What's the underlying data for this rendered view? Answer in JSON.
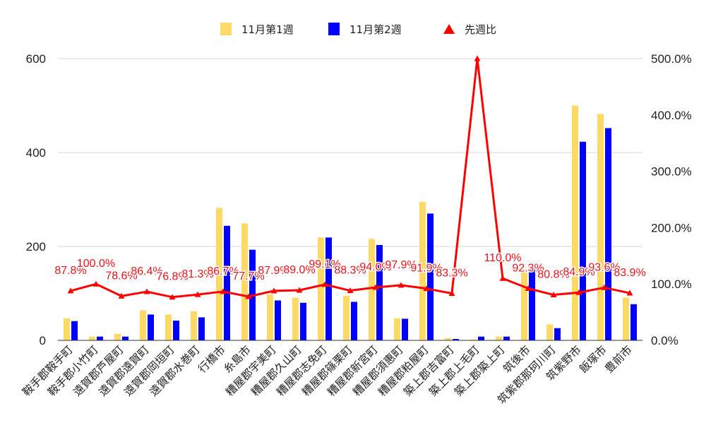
{
  "chart_data": {
    "type": "bar",
    "title": "",
    "categories": [
      "鞍手郡鞍手町",
      "鞍手郡小竹町",
      "遠賀郡芦屋町",
      "遠賀郡遠賀町",
      "遠賀郡岡垣町",
      "遠賀郡水巻町",
      "行橋市",
      "糸島市",
      "糟屋郡宇美町",
      "糟屋郡久山町",
      "糟屋郡志免町",
      "糟屋郡篠栗町",
      "糟屋郡新宮町",
      "糟屋郡須惠町",
      "糟屋郡粕屋町",
      "築上郡吉富町",
      "築上郡上毛町",
      "築上郡築上町",
      "筑後市",
      "筑紫郡那珂川町",
      "筑紫野市",
      "飯塚市",
      "豊前市"
    ],
    "series": [
      {
        "name": "11月第1週",
        "type": "bar",
        "axis": "left",
        "color": "#ffd966",
        "values": [
          47,
          8,
          14,
          64,
          55,
          62,
          282,
          249,
          98,
          91,
          219,
          95,
          216,
          47,
          295,
          5,
          2,
          8,
          152,
          34,
          500,
          482,
          91
        ]
      },
      {
        "name": "11月第2週",
        "type": "bar",
        "axis": "left",
        "color": "#0000ff",
        "values": [
          41,
          8,
          8,
          55,
          42,
          49,
          244,
          193,
          85,
          80,
          219,
          82,
          203,
          46,
          270,
          3,
          8,
          8,
          157,
          26,
          423,
          452,
          77
        ]
      },
      {
        "name": "先週比",
        "type": "line",
        "axis": "right",
        "color": "#ff0000",
        "values": [
          87.8,
          100.0,
          78.6,
          86.4,
          76.8,
          81.3,
          86.7,
          77.7,
          87.9,
          89.0,
          99.1,
          88.3,
          94.0,
          97.9,
          91.9,
          83.3,
          500.0,
          110.0,
          92.3,
          80.8,
          84.9,
          93.6,
          83.9
        ],
        "labels": [
          "87.8%",
          "100.0%",
          "78.6%",
          "86.4%",
          "76.8%",
          "81.3%",
          "86.7%",
          "77.7%",
          "87.9%",
          "89.0%",
          "99.1%",
          "88.3%",
          "94.0%",
          "97.9%",
          "91.9%",
          "83.3%",
          "",
          "110.0%",
          "92.3%",
          "80.8%",
          "84.9%",
          "93.6%",
          "83.9%"
        ]
      }
    ],
    "y_left": {
      "min": 0,
      "max": 600,
      "ticks": [
        "0",
        "200",
        "400",
        "600"
      ]
    },
    "y_right": {
      "min": 0,
      "max": 500,
      "ticks": [
        "0.0%",
        "100.0%",
        "200.0%",
        "300.0%",
        "400.0%",
        "500.0%"
      ]
    },
    "legend_position": "top-center",
    "grid": true
  }
}
